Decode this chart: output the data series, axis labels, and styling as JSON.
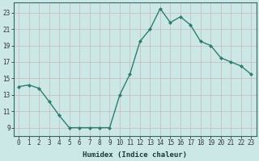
{
  "x": [
    0,
    1,
    2,
    3,
    4,
    5,
    6,
    7,
    8,
    9,
    10,
    11,
    12,
    13,
    14,
    15,
    16,
    17,
    18,
    19,
    20,
    21,
    22,
    23
  ],
  "y": [
    14.0,
    14.2,
    13.8,
    12.2,
    10.5,
    9.0,
    9.0,
    9.0,
    9.0,
    9.0,
    13.0,
    15.5,
    19.5,
    21.0,
    23.5,
    21.8,
    22.5,
    21.5,
    19.5,
    19.0,
    17.5,
    17.0,
    16.5,
    15.5
  ],
  "title": "",
  "xlabel": "Humidex (Indice chaleur)",
  "ylabel": "",
  "xlim": [
    -0.5,
    23.5
  ],
  "ylim": [
    8.0,
    24.2
  ],
  "yticks": [
    9,
    11,
    13,
    15,
    17,
    19,
    21,
    23
  ],
  "xticks": [
    0,
    1,
    2,
    3,
    4,
    5,
    6,
    7,
    8,
    9,
    10,
    11,
    12,
    13,
    14,
    15,
    16,
    17,
    18,
    19,
    20,
    21,
    22,
    23
  ],
  "xtick_labels": [
    "0",
    "1",
    "2",
    "3",
    "4",
    "5",
    "6",
    "7",
    "8",
    "9",
    "10",
    "11",
    "12",
    "13",
    "14",
    "15",
    "16",
    "17",
    "18",
    "19",
    "20",
    "21",
    "22",
    "23"
  ],
  "line_color": "#2e7d6e",
  "marker": "D",
  "marker_size": 2.0,
  "bg_color": "#cce8e6",
  "grid_color": "#c8b8b8",
  "line_width": 1.0,
  "tick_fontsize": 5.5,
  "xlabel_fontsize": 6.5
}
